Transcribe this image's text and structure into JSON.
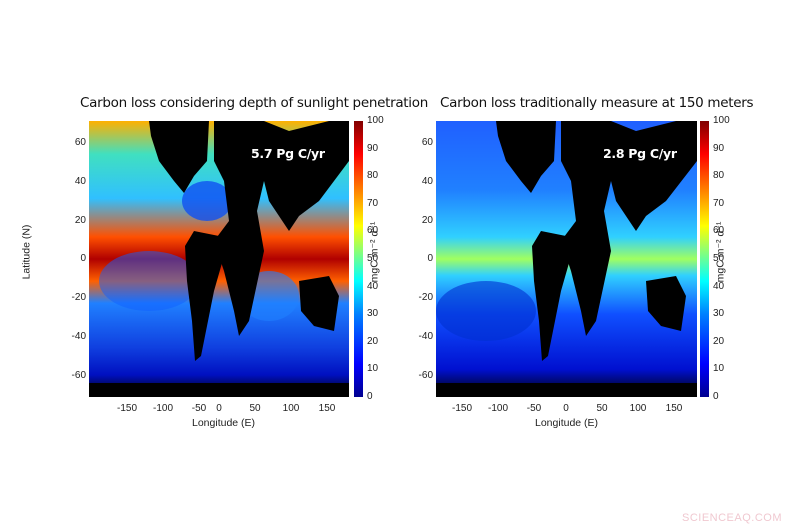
{
  "chart_data": [
    {
      "type": "heatmap",
      "title": "Carbon loss considering depth of sunlight penetration",
      "annotation": "5.7 Pg C/yr",
      "xlabel": "Longitude (E)",
      "ylabel": "Latitude (N)",
      "x_ticks": [
        "-150",
        "-100",
        "-50",
        "0",
        "50",
        "100",
        "150"
      ],
      "y_ticks": [
        "60",
        "40",
        "20",
        "0",
        "-20",
        "-40",
        "-60"
      ],
      "xlim": [
        -180,
        180
      ],
      "ylim": [
        -70,
        70
      ],
      "colorbar": {
        "label": "mgC m⁻² d⁻¹",
        "ticks": [
          "100",
          "90",
          "80",
          "70",
          "60",
          "50",
          "40",
          "30",
          "20",
          "10",
          "0"
        ],
        "range": [
          0,
          100
        ],
        "colormap": "jet"
      },
      "total": 5.7,
      "total_unit": "Pg C/yr"
    },
    {
      "type": "heatmap",
      "title": "Carbon loss traditionally measure at 150 meters",
      "annotation": "2.8 Pg C/yr",
      "xlabel": "Longitude (E)",
      "ylabel": "",
      "x_ticks": [
        "-150",
        "-100",
        "-50",
        "0",
        "50",
        "100",
        "150"
      ],
      "y_ticks": [
        "60",
        "40",
        "20",
        "0",
        "-20",
        "-40",
        "-60"
      ],
      "xlim": [
        -180,
        180
      ],
      "ylim": [
        -70,
        70
      ],
      "colorbar": {
        "label": "mgC m⁻² d⁻¹",
        "ticks": [
          "100",
          "90",
          "80",
          "70",
          "60",
          "50",
          "40",
          "30",
          "20",
          "10",
          "0"
        ],
        "range": [
          0,
          100
        ],
        "colormap": "jet"
      },
      "total": 2.8,
      "total_unit": "Pg C/yr"
    }
  ],
  "left": {
    "title": "Carbon loss considering depth of sunlight penetration",
    "annotation": "5.7 Pg C/yr",
    "xlabel": "Longitude (E)",
    "ylabel": "Latitude (N)",
    "cbar_label": "mgC m⁻² d⁻¹"
  },
  "right": {
    "title": "Carbon loss traditionally measure at 150 meters",
    "annotation": "2.8 Pg C/yr",
    "xlabel": "Longitude (E)",
    "cbar_label": "mgC m⁻² d⁻¹"
  },
  "xticks": [
    "-150",
    "-100",
    "-50",
    "0",
    "50",
    "100",
    "150"
  ],
  "yticks": [
    "60",
    "40",
    "20",
    "0",
    "-20",
    "-40",
    "-60"
  ],
  "cbticks": [
    "100",
    "90",
    "80",
    "70",
    "60",
    "50",
    "40",
    "30",
    "20",
    "10",
    "0"
  ],
  "watermark": "SCIENCEAQ.COM"
}
